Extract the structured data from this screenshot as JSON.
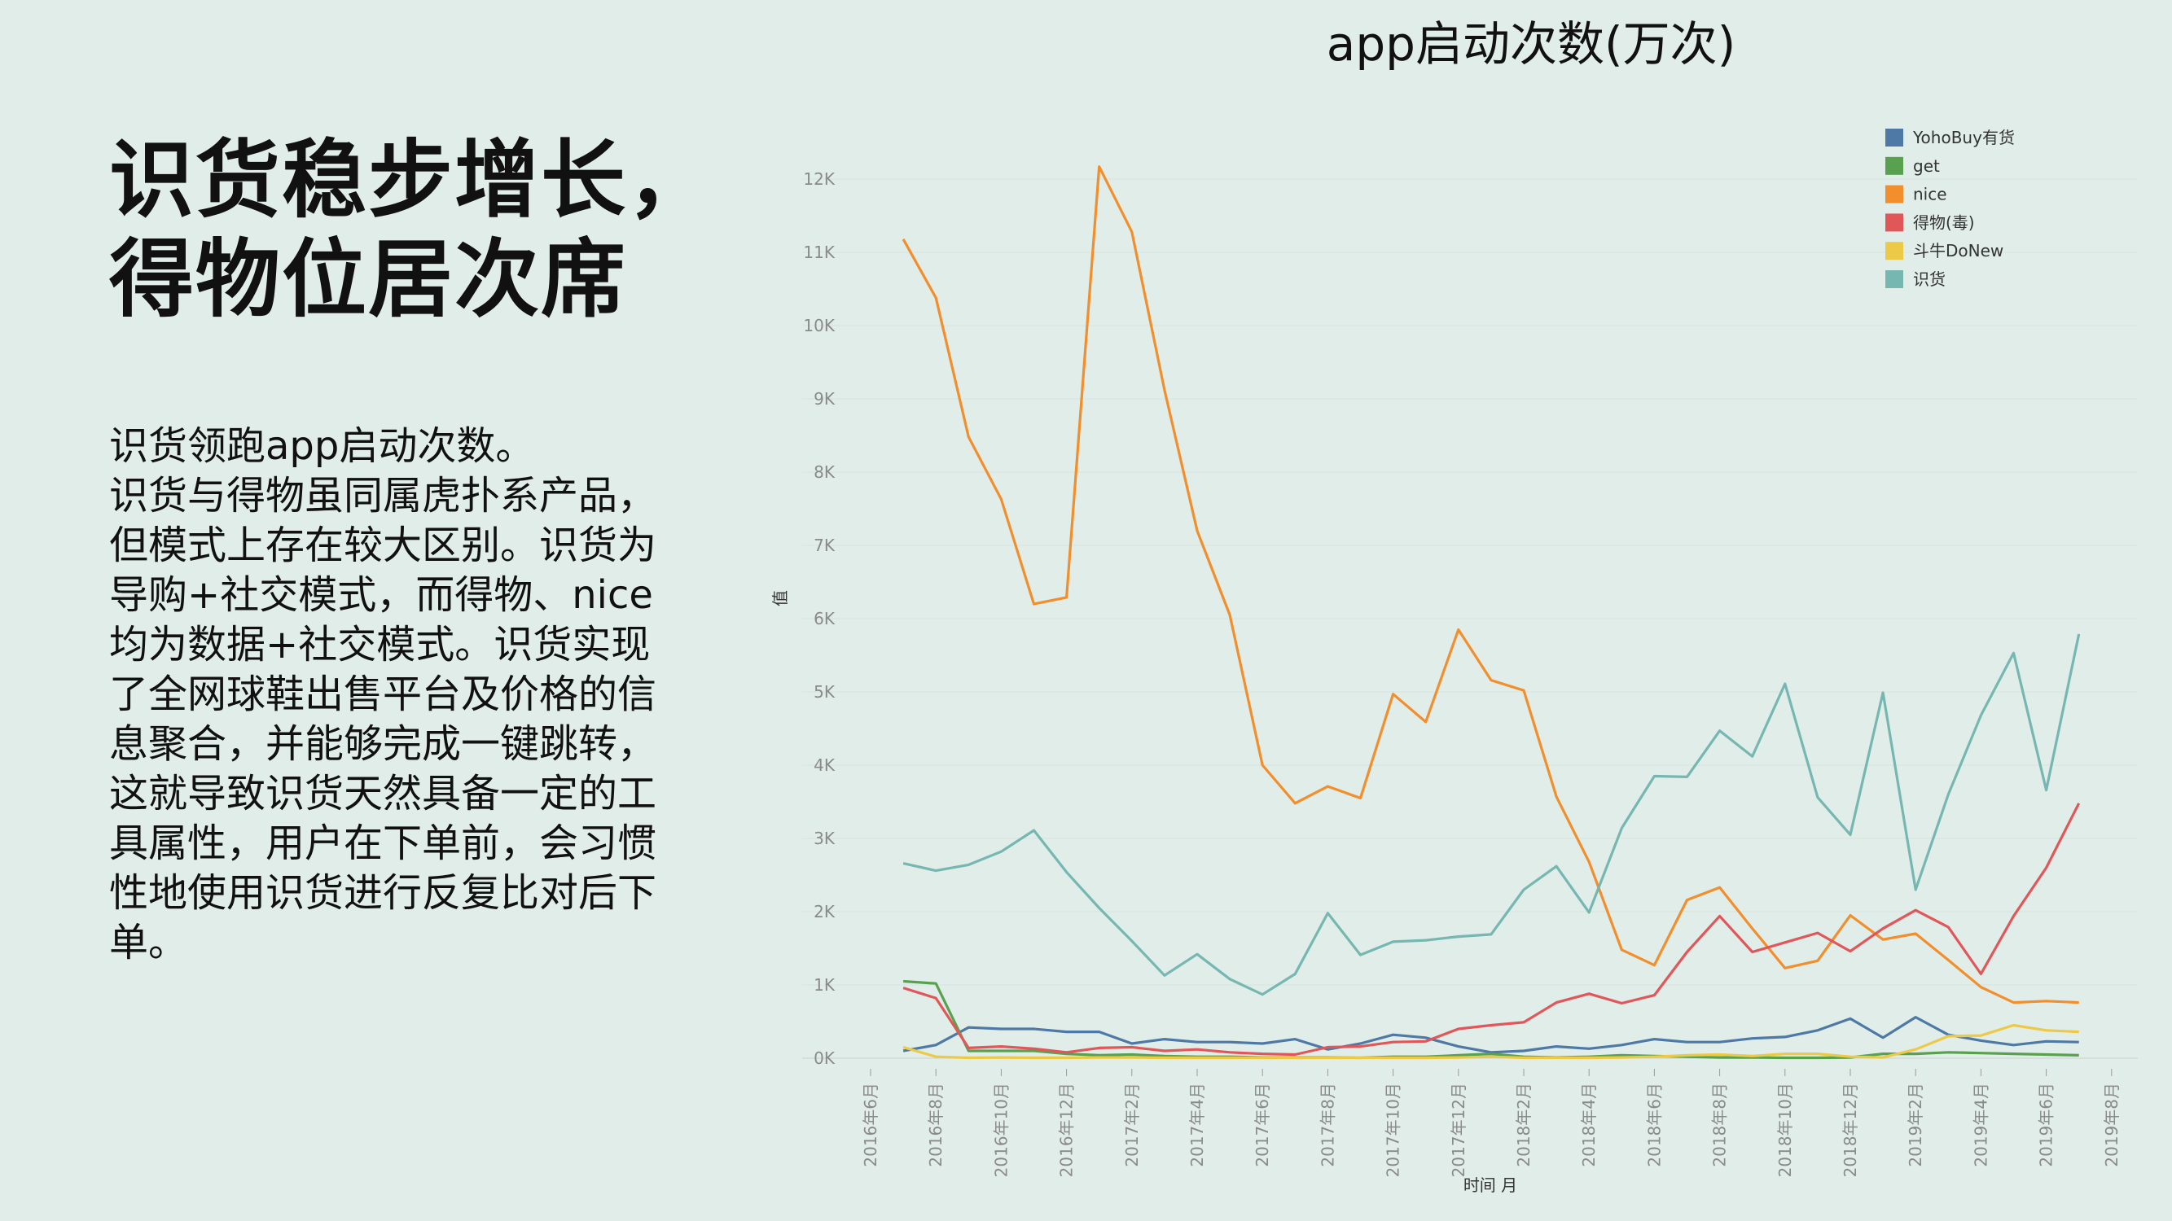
{
  "heading": {
    "line1": "识货稳步增长，",
    "line2": "得物位居次席"
  },
  "body": {
    "lines": [
      "识货领跑app启动次数。",
      "识货与得物虽同属虎扑系产品，",
      "但模式上存在较大区别。识货为",
      "导购+社交模式，而得物、nice",
      "均为数据+社交模式。识货实现",
      "了全网球鞋出售平台及价格的信",
      "息聚合，并能够完成一键跳转，",
      "这就导致识货天然具备一定的工",
      "具属性，用户在下单前，会习惯",
      "性地使用识货进行反复比对后下",
      "单。"
    ]
  },
  "chart_data": {
    "type": "line",
    "title": "app启动次数(万次)",
    "xlabel": "时间 月",
    "ylabel": "值",
    "ylim": [
      0,
      12000
    ],
    "yticks": [
      "0K",
      "1K",
      "2K",
      "3K",
      "4K",
      "5K",
      "6K",
      "7K",
      "8K",
      "9K",
      "10K",
      "11K",
      "12K"
    ],
    "xticks": [
      "2016年6月",
      "2016年8月",
      "2016年10月",
      "2016年12月",
      "2017年2月",
      "2017年4月",
      "2017年6月",
      "2017年8月",
      "2017年10月",
      "2017年12月",
      "2018年2月",
      "2018年4月",
      "2018年6月",
      "2018年8月",
      "2018年10月",
      "2018年12月",
      "2019年2月",
      "2019年4月",
      "2019年6月",
      "2019年8月"
    ],
    "legend_position": "top-right",
    "grid": true,
    "x": [
      "2016-07",
      "2016-08",
      "2016-09",
      "2016-10",
      "2016-11",
      "2016-12",
      "2017-01",
      "2017-02",
      "2017-03",
      "2017-04",
      "2017-05",
      "2017-06",
      "2017-07",
      "2017-08",
      "2017-09",
      "2017-10",
      "2017-11",
      "2017-12",
      "2018-01",
      "2018-02",
      "2018-03",
      "2018-04",
      "2018-05",
      "2018-06",
      "2018-07",
      "2018-08",
      "2018-09",
      "2018-10",
      "2018-11",
      "2018-12",
      "2019-01",
      "2019-02",
      "2019-03",
      "2019-04",
      "2019-05",
      "2019-06",
      "2019-07"
    ],
    "series": [
      {
        "name": "YohoBuy有货",
        "color": "#4e79a7",
        "values": [
          100,
          180,
          420,
          400,
          400,
          360,
          360,
          200,
          260,
          220,
          220,
          200,
          260,
          120,
          200,
          320,
          280,
          160,
          80,
          100,
          160,
          130,
          180,
          260,
          220,
          220,
          270,
          290,
          380,
          540,
          280,
          560,
          320,
          240,
          180,
          230,
          220
        ]
      },
      {
        "name": "get",
        "color": "#59a14f",
        "values": [
          1050,
          1020,
          100,
          100,
          100,
          60,
          40,
          50,
          30,
          20,
          20,
          10,
          10,
          10,
          5,
          20,
          20,
          40,
          60,
          20,
          10,
          20,
          40,
          30,
          20,
          10,
          10,
          5,
          5,
          10,
          60,
          60,
          80,
          70,
          60,
          50,
          40
        ]
      },
      {
        "name": "nice",
        "color": "#f28e2b",
        "values": [
          11180,
          10380,
          8480,
          7630,
          6200,
          6290,
          12170,
          11280,
          9120,
          7200,
          6050,
          4000,
          3480,
          3710,
          3550,
          4970,
          4590,
          5850,
          5160,
          5020,
          3570,
          2680,
          1480,
          1270,
          2160,
          2330,
          1770,
          1230,
          1330,
          1950,
          1620,
          1700,
          1340,
          970,
          760,
          780,
          760
        ]
      },
      {
        "name": "得物(毒)",
        "color": "#e15759",
        "values": [
          960,
          820,
          140,
          160,
          130,
          80,
          140,
          150,
          100,
          120,
          80,
          60,
          50,
          150,
          160,
          220,
          230,
          400,
          450,
          490,
          760,
          880,
          750,
          860,
          1450,
          1940,
          1450,
          1580,
          1710,
          1460,
          1770,
          2020,
          1790,
          1150,
          1940,
          2600,
          3480
        ]
      },
      {
        "name": "斗牛DoNew",
        "color": "#edc948",
        "values": [
          150,
          20,
          5,
          10,
          5,
          5,
          10,
          10,
          5,
          5,
          5,
          5,
          5,
          5,
          5,
          5,
          5,
          10,
          20,
          5,
          5,
          5,
          10,
          20,
          40,
          50,
          30,
          60,
          60,
          20,
          10,
          120,
          300,
          310,
          450,
          380,
          360
        ]
      },
      {
        "name": "识货",
        "color": "#76b7b2",
        "values": [
          2660,
          2560,
          2640,
          2820,
          3110,
          2540,
          2050,
          1600,
          1130,
          1420,
          1080,
          870,
          1150,
          1980,
          1410,
          1590,
          1610,
          1660,
          1690,
          2300,
          2620,
          1990,
          3140,
          3850,
          3840,
          4470,
          4120,
          5110,
          3560,
          3050,
          4990,
          2300,
          3600,
          4680,
          5530,
          3660,
          5790
        ]
      }
    ]
  }
}
